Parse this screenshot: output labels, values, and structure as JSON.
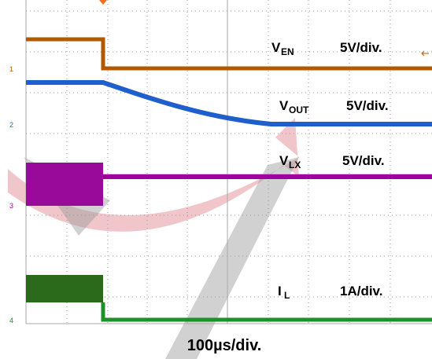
{
  "channels": [
    {
      "marker": "1",
      "symbol": "V",
      "sub": "EN",
      "scale": "5V/div."
    },
    {
      "marker": "2",
      "symbol": "V",
      "sub": "OUT",
      "scale": "5V/div."
    },
    {
      "marker": "3",
      "symbol": "V",
      "sub": "LX",
      "scale": "5V/div."
    },
    {
      "marker": "4",
      "symbol": "I",
      "sub": "L",
      "scale": "1A/div."
    }
  ],
  "timebase": "100µs/div."
}
